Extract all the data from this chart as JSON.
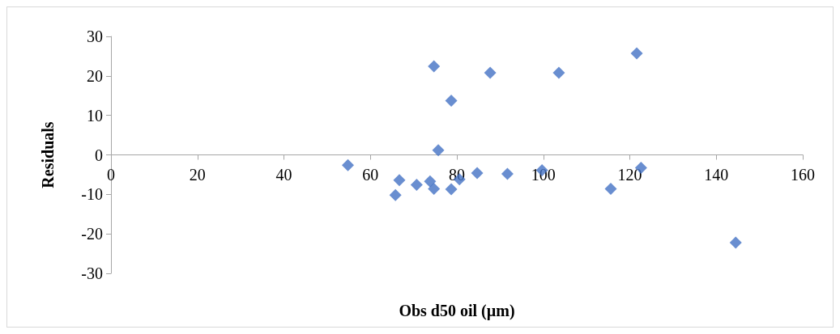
{
  "chart_data": {
    "type": "scatter",
    "xlabel": "Obs d50 oil (µm)",
    "ylabel": "Residuals",
    "x": [
      54.8,
      65.8,
      66.7,
      70.7,
      73.8,
      74.7,
      74.7,
      75.7,
      78.7,
      78.7,
      80.6,
      84.7,
      87.7,
      91.7,
      99.7,
      103.6,
      115.6,
      121.6,
      122.6,
      144.5
    ],
    "series": [
      {
        "color": "#4472c4",
        "values": [
          -2.6,
          -10.2,
          -6.4,
          -7.6,
          -6.7,
          -8.6,
          22.4,
          1.2,
          13.7,
          -8.7,
          -6.2,
          -4.6,
          20.8,
          -4.8,
          -3.9,
          20.8,
          -8.6,
          25.7,
          -3.3,
          -22.2
        ]
      }
    ],
    "xlim": [
      0,
      160
    ],
    "xticks": [
      0,
      20,
      40,
      60,
      80,
      100,
      120,
      140,
      160
    ],
    "ylim": [
      -30,
      30
    ],
    "yticks": [
      -30,
      -20,
      -10,
      0,
      10,
      20,
      30
    ],
    "marker": "diamond",
    "grid": false
  }
}
